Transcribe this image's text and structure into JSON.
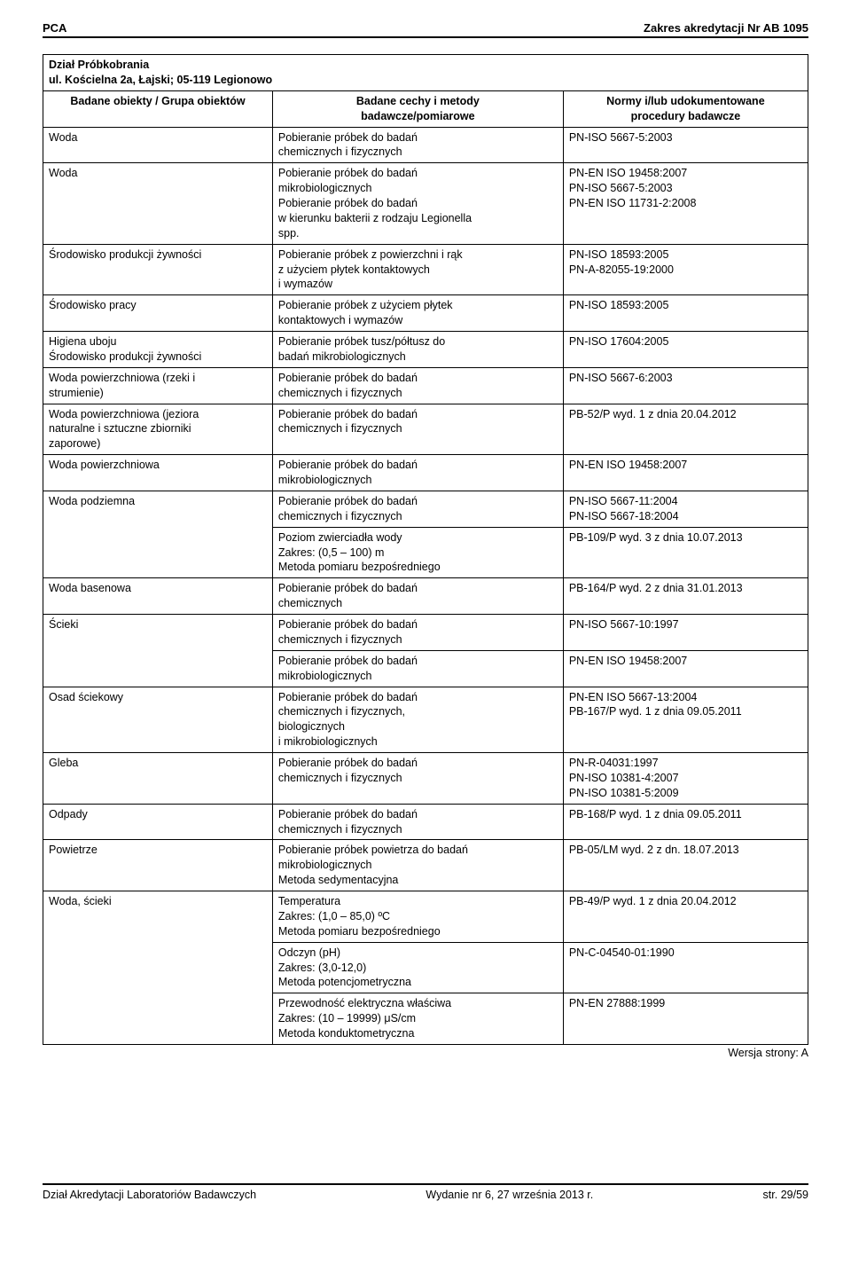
{
  "header": {
    "left": "PCA",
    "right": "Zakres akredytacji Nr AB 1095"
  },
  "table": {
    "title_line1": "Dział Próbkobrania",
    "title_line2": "ul. Kościelna 2a, Łajski; 05-119 Legionowo",
    "col_headers": {
      "c1": "Badane obiekty / Grupa obiektów",
      "c2a": "Badane cechy i metody",
      "c2b": "badawcze/pomiarowe",
      "c3a": "Normy i/lub udokumentowane",
      "c3b": "procedury badawcze"
    },
    "rows": [
      {
        "c1": "Woda",
        "c2": "Pobieranie próbek do badań\nchemicznych i fizycznych",
        "c3": "PN-ISO 5667-5:2003",
        "r1": 1,
        "r2": 1,
        "r3": 1
      },
      {
        "c1": "Woda",
        "c2": "Pobieranie próbek do badań\nmikrobiologicznych\nPobieranie próbek do badań\nw kierunku bakterii z rodzaju Legionella\nspp.",
        "c3": "PN-EN ISO 19458:2007\nPN-ISO 5667-5:2003\nPN-EN ISO 11731-2:2008",
        "r1": 1,
        "r2": 1,
        "r3": 1
      },
      {
        "c1": "Środowisko produkcji żywności",
        "c2": "Pobieranie próbek z powierzchni i rąk\nz użyciem płytek kontaktowych\ni wymazów",
        "c3": "PN-ISO 18593:2005\nPN-A-82055-19:2000",
        "r1": 1,
        "r2": 1,
        "r3": 1
      },
      {
        "c1": "Środowisko pracy",
        "c2": "Pobieranie próbek z użyciem płytek\nkontaktowych i wymazów",
        "c3": "PN-ISO 18593:2005",
        "r1": 1,
        "r2": 1,
        "r3": 1
      },
      {
        "c1": "Higiena uboju\nŚrodowisko produkcji żywności",
        "c2": "Pobieranie próbek tusz/półtusz do\nbadań mikrobiologicznych",
        "c3": "PN-ISO 17604:2005",
        "r1": 1,
        "r2": 1,
        "r3": 1
      },
      {
        "c1": "Woda powierzchniowa (rzeki i\nstrumienie)",
        "c2": "Pobieranie próbek do badań\nchemicznych i fizycznych",
        "c3": "PN-ISO 5667-6:2003",
        "r1": 1,
        "r2": 1,
        "r3": 1
      },
      {
        "c1": "Woda powierzchniowa (jeziora\nnaturalne i sztuczne zbiorniki\nzaporowe)",
        "c2": "Pobieranie próbek do badań\nchemicznych i fizycznych",
        "c3": "PB-52/P wyd. 1 z dnia 20.04.2012",
        "r1": 1,
        "r2": 1,
        "r3": 1
      },
      {
        "c1": "Woda powierzchniowa",
        "c2": "Pobieranie próbek do badań\nmikrobiologicznych",
        "c3": "PN-EN ISO 19458:2007",
        "r1": 1,
        "r2": 1,
        "r3": 1
      },
      {
        "c1": "Woda podziemna",
        "c2": "Pobieranie próbek do badań\nchemicznych i fizycznych",
        "c3": "PN-ISO 5667-11:2004\nPN-ISO 5667-18:2004",
        "r1": 2,
        "r2": 1,
        "r3": 1
      },
      {
        "c1": "",
        "c2": "Poziom zwierciadła wody\nZakres: (0,5 – 100) m\nMetoda pomiaru bezpośredniego",
        "c3": "PB-109/P wyd. 3 z dnia 10.07.2013",
        "r1": 0,
        "r2": 1,
        "r3": 1
      },
      {
        "c1": "Woda basenowa",
        "c2": "Pobieranie próbek do badań\nchemicznych",
        "c3": "PB-164/P wyd. 2 z dnia 31.01.2013",
        "r1": 1,
        "r2": 1,
        "r3": 1
      },
      {
        "c1": "Ścieki",
        "c2": "Pobieranie próbek do badań\nchemicznych i fizycznych",
        "c3": "PN-ISO 5667-10:1997",
        "r1": 2,
        "r2": 1,
        "r3": 1
      },
      {
        "c1": "",
        "c2": "Pobieranie próbek do badań\nmikrobiologicznych",
        "c3": "PN-EN ISO 19458:2007",
        "r1": 0,
        "r2": 1,
        "r3": 1
      },
      {
        "c1": "Osad ściekowy",
        "c2": "Pobieranie próbek do badań\nchemicznych i fizycznych,\nbiologicznych\ni mikrobiologicznych",
        "c3": "PN-EN ISO 5667-13:2004\nPB-167/P wyd. 1 z dnia 09.05.2011",
        "r1": 1,
        "r2": 1,
        "r3": 1
      },
      {
        "c1": "Gleba",
        "c2": "Pobieranie próbek do badań\nchemicznych i fizycznych",
        "c3": "PN-R-04031:1997\nPN-ISO 10381-4:2007\nPN-ISO 10381-5:2009",
        "r1": 1,
        "r2": 1,
        "r3": 1
      },
      {
        "c1": "Odpady",
        "c2": "Pobieranie próbek do badań\nchemicznych i fizycznych",
        "c3": "PB-168/P wyd. 1 z dnia 09.05.2011",
        "r1": 1,
        "r2": 1,
        "r3": 1
      },
      {
        "c1": "Powietrze",
        "c2": "Pobieranie próbek powietrza do badań\nmikrobiologicznych\nMetoda sedymentacyjna",
        "c3": "PB-05/LM wyd. 2 z dn. 18.07.2013",
        "r1": 1,
        "r2": 1,
        "r3": 1
      },
      {
        "c1": "Woda, ścieki",
        "c2": "Temperatura\nZakres: (1,0 – 85,0) ºC\nMetoda pomiaru bezpośredniego",
        "c3": "PB-49/P wyd. 1 z dnia 20.04.2012",
        "r1": 3,
        "r2": 1,
        "r3": 1
      },
      {
        "c1": "",
        "c2": "Odczyn (pH)\nZakres: (3,0-12,0)\nMetoda potencjometryczna",
        "c3": "PN-C-04540-01:1990",
        "r1": 0,
        "r2": 1,
        "r3": 1
      },
      {
        "c1": "",
        "c2": "Przewodność elektryczna właściwa\nZakres: (10 – 19999) μS/cm\nMetoda konduktometryczna",
        "c3": "PN-EN 27888:1999",
        "r1": 0,
        "r2": 1,
        "r3": 1
      }
    ]
  },
  "version": "Wersja strony: A",
  "footer": {
    "left": "Dział Akredytacji Laboratoriów Badawczych",
    "center": "Wydanie nr 6, 27 września 2013 r.",
    "right": "str. 29/59"
  }
}
